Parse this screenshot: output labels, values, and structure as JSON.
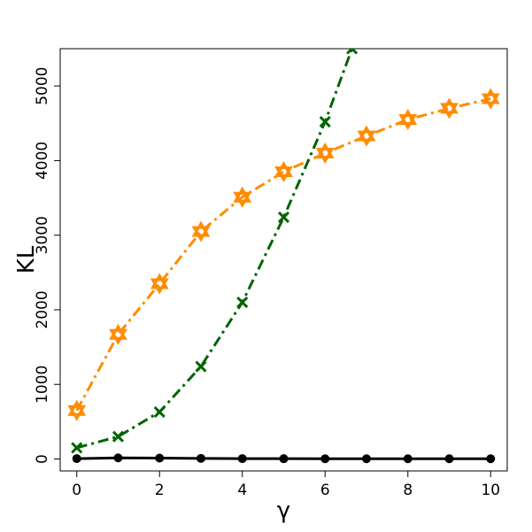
{
  "chart_data": {
    "type": "line",
    "title": "",
    "xlabel": "γ",
    "ylabel": "KL",
    "xlim": [
      -0.4,
      10.4
    ],
    "ylim": [
      -160,
      5500
    ],
    "xticks": [
      0,
      2,
      4,
      6,
      8,
      10
    ],
    "yticks": [
      0,
      1000,
      2000,
      3000,
      4000,
      5000
    ],
    "grid": false,
    "legend": "none",
    "series": [
      {
        "color": "#ff8c00",
        "marker": "star-of-david",
        "linestyle": "dashdot",
        "x": [
          0,
          1,
          2,
          3,
          4,
          5,
          6,
          7,
          8,
          9,
          10
        ],
        "y": [
          650,
          1670,
          2350,
          3050,
          3510,
          3850,
          4100,
          4330,
          4550,
          4700,
          4830
        ]
      },
      {
        "color": "#006400",
        "marker": "x",
        "linestyle": "dashdot",
        "x": [
          0,
          1,
          2,
          3,
          4,
          5,
          6,
          6.65
        ],
        "y": [
          150,
          300,
          630,
          1240,
          2100,
          3240,
          4520,
          5500
        ]
      },
      {
        "color": "#000000",
        "marker": "circle",
        "linestyle": "solid",
        "x": [
          0,
          1,
          2,
          3,
          4,
          5,
          6,
          7,
          8,
          9,
          10
        ],
        "y": [
          5,
          15,
          12,
          8,
          5,
          4,
          3,
          3,
          3,
          3,
          3
        ]
      }
    ]
  }
}
